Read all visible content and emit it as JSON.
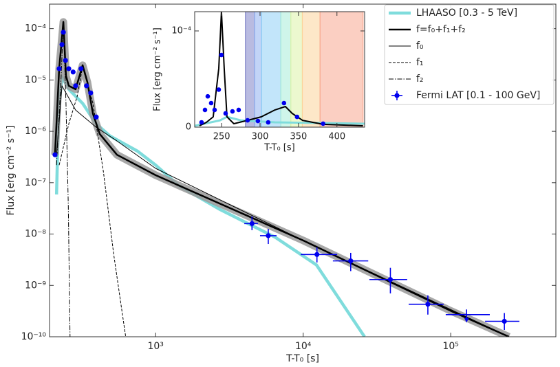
{
  "chart_data": [
    {
      "type": "line",
      "xlog": true,
      "ylog": true,
      "xlabel": "T-T₀ [s]",
      "ylabel": "Flux [erg cm⁻² s⁻¹]",
      "xlim": [
        191,
        516000
      ],
      "ylim": [
        1e-10,
        0.0003
      ],
      "xticks": [
        {
          "value": 1000,
          "label": "10³"
        },
        {
          "value": 10000,
          "label": "10⁴"
        },
        {
          "value": 100000,
          "label": "10⁵"
        }
      ],
      "yticks": [
        {
          "value": 1e-10,
          "label": "10⁻¹⁰"
        },
        {
          "value": 1e-09,
          "label": "10⁻⁹"
        },
        {
          "value": 1e-08,
          "label": "10⁻⁸"
        },
        {
          "value": 1e-07,
          "label": "10⁻⁷"
        },
        {
          "value": 1e-06,
          "label": "10⁻⁶"
        },
        {
          "value": 1e-05,
          "label": "10⁻⁵"
        },
        {
          "value": 0.0001,
          "label": "10⁻⁴"
        }
      ],
      "legend": "upper right",
      "series": [
        {
          "name": "LHAASO [0.3 - 5 TeV]",
          "color": "#7fdcdc",
          "style": "solid",
          "width": 4.5,
          "x": [
            213,
            220,
            232,
            258,
            320,
            396,
            491,
            755,
            1000,
            1436,
            2735,
            6457,
            12300,
            26060
          ],
          "values": [
            5.9e-08,
            2.6e-06,
            1.15e-05,
            6.6e-06,
            3.5e-06,
            1.4e-06,
            8.1e-07,
            4.1e-07,
            2.2e-07,
            8.8e-08,
            3e-08,
            8.7e-09,
            2.5e-09,
            1e-10
          ]
        },
        {
          "name": "f=f₀+f₁+f₂",
          "color": "#000000",
          "style": "solid",
          "width": 2.5,
          "band_color": "#999999",
          "x": [
            208,
            222,
            237,
            247,
            258,
            287,
            320,
            345,
            376,
            418,
            547,
            1000,
            10000,
            100000,
            248000
          ],
          "values": [
            3.5e-07,
            1.66e-05,
            0.000135,
            1.2e-05,
            7.7e-06,
            6.6e-06,
            1.94e-05,
            9e-06,
            2.2e-06,
            8.9e-07,
            3.5e-07,
            1.4e-07,
            7.5e-09,
            3.2e-10,
            1e-10
          ]
        },
        {
          "name": "f₀",
          "color": "#000000",
          "style": "solid",
          "width": 1,
          "x": [
            213,
            232,
            287,
            396,
            547,
            1000,
            10000,
            248000
          ],
          "values": [
            3.5e-07,
            7.7e-06,
            2.6e-06,
            1.2e-06,
            6.5e-07,
            1.9e-07,
            7.5e-09,
            1e-10
          ]
        },
        {
          "name": "f₁",
          "color": "#000000",
          "style": "dashed",
          "width": 1,
          "x": [
            222,
            258,
            294,
            320,
            376,
            443,
            520,
            627
          ],
          "values": [
            2.2e-07,
            1.4e-06,
            4.8e-06,
            1.8e-05,
            3.5e-06,
            1.6e-07,
            4e-09,
            1e-10
          ]
        },
        {
          "name": "f₂",
          "color": "#000000",
          "style": "dashdot",
          "width": 1,
          "x": [
            213,
            229,
            237,
            247,
            256,
            263
          ],
          "values": [
            2.2e-07,
            1.2e-05,
            0.000135,
            3.5e-06,
            3.5e-08,
            1e-10
          ]
        },
        {
          "name": "Fermi LAT [0.1 - 100 GeV]",
          "color": "#0000ee",
          "style": "marker",
          "x": [
            208,
            222,
            232,
            237,
            245,
            258,
            276,
            287,
            312,
            340,
            363,
            396,
            4500,
            5800,
            12400,
            21000,
            39000,
            70000,
            128000,
            231000
          ],
          "values": [
            3.5e-07,
            1.66e-05,
            4.9e-05,
            8.5e-05,
            2.4e-05,
            1.66e-05,
            1.43e-05,
            7.7e-06,
            1.66e-05,
            7.7e-06,
            5.6e-06,
            1.9e-06,
            1.6e-08,
            9.3e-09,
            4e-09,
            3e-09,
            1.3e-09,
            4.3e-10,
            2.7e-10,
            2e-10
          ],
          "x_lo": [
            null,
            null,
            null,
            null,
            null,
            null,
            null,
            null,
            null,
            null,
            null,
            null,
            3990,
            5100,
            9620,
            15900,
            28100,
            51900,
            92500,
            171000
          ],
          "x_hi": [
            null,
            null,
            null,
            null,
            null,
            null,
            null,
            null,
            null,
            null,
            null,
            null,
            4940,
            6600,
            17000,
            27600,
            50700,
            89500,
            184000,
            292000
          ],
          "y_lo": [
            null,
            null,
            null,
            null,
            null,
            null,
            null,
            null,
            null,
            null,
            null,
            null,
            1.19e-08,
            6.4e-09,
            2.8e-09,
            1.9e-09,
            7e-10,
            2.7e-10,
            2e-10,
            1.36e-10
          ],
          "y_hi": [
            null,
            null,
            null,
            null,
            null,
            null,
            null,
            null,
            null,
            null,
            null,
            null,
            2.2e-08,
            1.26e-08,
            5.5e-09,
            4.3e-09,
            2.2e-09,
            6.4e-10,
            3.4e-10,
            2.9e-10
          ],
          "upper_limit": [
            false,
            false,
            false,
            false,
            false,
            false,
            false,
            false,
            false,
            false,
            false,
            false,
            false,
            false,
            false,
            false,
            false,
            false,
            true,
            false
          ]
        }
      ]
    },
    {
      "type": "line",
      "xlog": false,
      "ylog": false,
      "xlabel": "T-T₀ [s]",
      "ylabel": "Flux [erg cm⁻² s⁻¹]",
      "xlim": [
        215,
        436
      ],
      "ylim": [
        0,
        0.00012
      ],
      "xticks": [
        250,
        300,
        350,
        400
      ],
      "yticks": [
        0,
        {
          "value": 0.0001,
          "label": "10⁻⁴"
        }
      ],
      "bands": [
        {
          "x0": 281,
          "x1": 293,
          "color": "#7f84c8"
        },
        {
          "x0": 293,
          "x1": 302,
          "color": "#8fb0f0"
        },
        {
          "x0": 302,
          "x1": 327,
          "color": "#8fd0f5"
        },
        {
          "x0": 327,
          "x1": 340,
          "color": "#a8ecd8"
        },
        {
          "x0": 340,
          "x1": 355,
          "color": "#dcf2a8"
        },
        {
          "x0": 355,
          "x1": 378,
          "color": "#fcd39a"
        },
        {
          "x0": 378,
          "x1": 434,
          "color": "#f8a890"
        }
      ],
      "series": [
        {
          "color": "#7fdcdc",
          "style": "solid",
          "width": 3,
          "x": [
            215,
            248,
            257,
            274.8,
            319.5,
            435.6
          ],
          "values": [
            1.4e-06,
            7.1e-06,
            1.07e-05,
            7.1e-06,
            5e-06,
            3.6e-06
          ]
        },
        {
          "color": "#000000",
          "style": "solid",
          "width": 2,
          "x": [
            221.3,
            230.2,
            239.1,
            246.3,
            249.8,
            253.4,
            257,
            265.9,
            283.8,
            301.6,
            319.5,
            332.9,
            341.8,
            355.2,
            382,
            433.8
          ],
          "values": [
            1.4e-06,
            5e-06,
            1.07e-05,
            6.1e-05,
            0.00012,
            6.1e-05,
            1.07e-05,
            3.6e-06,
            7.1e-06,
            1.07e-05,
            1.79e-05,
            2.14e-05,
            1.43e-05,
            7.1e-06,
            2.9e-06,
            1.4e-06
          ]
        },
        {
          "color": "#0000ee",
          "style": "marker",
          "x": [
            223.9,
            228.4,
            232,
            236.4,
            240.9,
            246.3,
            249.8,
            255.2,
            264.1,
            272.2,
            283.8,
            297.2,
            310.6,
            331.1,
            348.1,
            382
          ],
          "values": [
            5e-06,
            1.79e-05,
            3.2e-05,
            2.5e-05,
            1.79e-05,
            3.9e-05,
            7.5e-05,
            1.43e-05,
            1.64e-05,
            1.79e-05,
            7.1e-06,
            6.4e-06,
            5e-06,
            2.5e-05,
            1.07e-05,
            3.6e-06
          ]
        }
      ]
    }
  ]
}
